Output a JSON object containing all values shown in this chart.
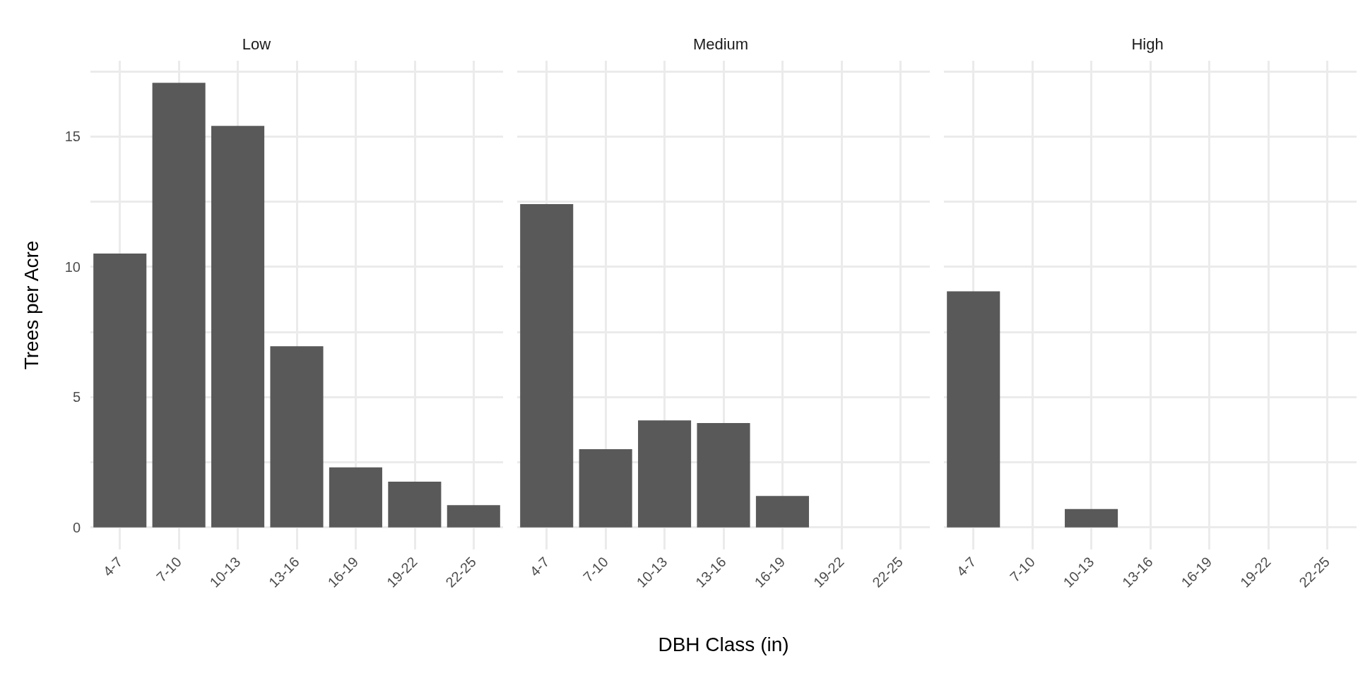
{
  "chart_data": [
    {
      "type": "bar",
      "title": "Low",
      "ylabel": "Trees per Acre",
      "categories": [
        "4-7",
        "7-10",
        "10-13",
        "13-16",
        "16-19",
        "19-22",
        "22-25"
      ],
      "values": [
        10.5,
        17.05,
        15.4,
        6.95,
        2.3,
        1.75,
        0.85
      ],
      "color": "#595959",
      "ylim": [
        -0.85,
        17.9
      ],
      "yticks": [
        0,
        {
          "value": 2.5,
          "label": null
        },
        5,
        {
          "value": 7.5,
          "label": null
        },
        10,
        {
          "value": 12.5,
          "label": null
        },
        15,
        {
          "value": 17.5,
          "label": null
        }
      ],
      "grid": true
    },
    {
      "type": "bar",
      "title": "Medium",
      "xlabel": "DBH Class (in)",
      "categories": [
        "4-7",
        "7-10",
        "10-13",
        "13-16",
        "16-19",
        "19-22",
        "22-25"
      ],
      "values": [
        12.4,
        3.0,
        4.1,
        4.0,
        1.2,
        null,
        null
      ],
      "color": "#595959",
      "ylim": [
        -0.85,
        17.9
      ],
      "yticks": [
        0,
        {
          "value": 2.5,
          "label": null
        },
        5,
        {
          "value": 7.5,
          "label": null
        },
        10,
        {
          "value": 12.5,
          "label": null
        },
        15,
        {
          "value": 17.5,
          "label": null
        }
      ],
      "grid": true,
      "tick_labels": "x"
    },
    {
      "type": "bar",
      "title": "High",
      "categories": [
        "4-7",
        "7-10",
        "10-13",
        "13-16",
        "16-19",
        "19-22",
        "22-25"
      ],
      "values": [
        9.05,
        null,
        0.7,
        null,
        null,
        null,
        null
      ],
      "color": "#595959",
      "ylim": [
        -0.85,
        17.9
      ],
      "yticks": [
        0,
        {
          "value": 2.5,
          "label": null
        },
        5,
        {
          "value": 7.5,
          "label": null
        },
        10,
        {
          "value": 12.5,
          "label": null
        },
        15,
        {
          "value": 17.5,
          "label": null
        }
      ],
      "grid": true,
      "tick_labels": "x"
    }
  ]
}
